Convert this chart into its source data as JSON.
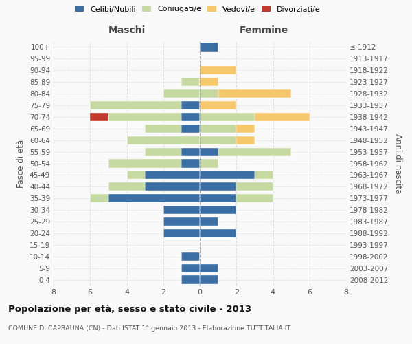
{
  "age_groups": [
    "0-4",
    "5-9",
    "10-14",
    "15-19",
    "20-24",
    "25-29",
    "30-34",
    "35-39",
    "40-44",
    "45-49",
    "50-54",
    "55-59",
    "60-64",
    "65-69",
    "70-74",
    "75-79",
    "80-84",
    "85-89",
    "90-94",
    "95-99",
    "100+"
  ],
  "birth_years": [
    "2008-2012",
    "2003-2007",
    "1998-2002",
    "1993-1997",
    "1988-1992",
    "1983-1987",
    "1978-1982",
    "1973-1977",
    "1968-1972",
    "1963-1967",
    "1958-1962",
    "1953-1957",
    "1948-1952",
    "1943-1947",
    "1938-1942",
    "1933-1937",
    "1928-1932",
    "1923-1927",
    "1918-1922",
    "1913-1917",
    "≤ 1912"
  ],
  "maschi": {
    "celibi": [
      1,
      1,
      1,
      0,
      2,
      2,
      2,
      5,
      3,
      3,
      1,
      1,
      0,
      1,
      1,
      1,
      0,
      0,
      0,
      0,
      0
    ],
    "coniugati": [
      0,
      0,
      0,
      0,
      0,
      0,
      0,
      1,
      2,
      1,
      4,
      2,
      4,
      2,
      4,
      5,
      2,
      1,
      0,
      0,
      0
    ],
    "vedovi": [
      0,
      0,
      0,
      0,
      0,
      0,
      0,
      0,
      0,
      0,
      0,
      0,
      0,
      0,
      0,
      0,
      0,
      0,
      0,
      0,
      0
    ],
    "divorziati": [
      0,
      0,
      0,
      0,
      0,
      0,
      0,
      0,
      0,
      0,
      0,
      0,
      0,
      0,
      1,
      0,
      0,
      0,
      0,
      0,
      0
    ]
  },
  "femmine": {
    "nubili": [
      1,
      1,
      0,
      0,
      2,
      1,
      2,
      2,
      2,
      3,
      0,
      1,
      0,
      0,
      0,
      0,
      0,
      0,
      0,
      0,
      1
    ],
    "coniugate": [
      0,
      0,
      0,
      0,
      0,
      0,
      0,
      2,
      2,
      1,
      1,
      4,
      2,
      2,
      3,
      0,
      1,
      0,
      0,
      0,
      0
    ],
    "vedove": [
      0,
      0,
      0,
      0,
      0,
      0,
      0,
      0,
      0,
      0,
      0,
      0,
      1,
      1,
      3,
      2,
      4,
      1,
      2,
      0,
      0
    ],
    "divorziate": [
      0,
      0,
      0,
      0,
      0,
      0,
      0,
      0,
      0,
      0,
      0,
      0,
      0,
      0,
      0,
      0,
      0,
      0,
      0,
      0,
      0
    ]
  },
  "color_celibi": "#3a6ea5",
  "color_coniugati": "#c5d9a0",
  "color_vedovi": "#f5c96b",
  "color_divorziati": "#c0392b",
  "title": "Popolazione per età, sesso e stato civile - 2013",
  "subtitle": "COMUNE DI CAPRAUNA (CN) - Dati ISTAT 1° gennaio 2013 - Elaborazione TUTTITALIA.IT",
  "xlabel_left": "Maschi",
  "xlabel_right": "Femmine",
  "ylabel_left": "Fasce di età",
  "ylabel_right": "Anni di nascita",
  "xlim": 8,
  "background_color": "#f9f9f9",
  "grid_color": "#dddddd"
}
